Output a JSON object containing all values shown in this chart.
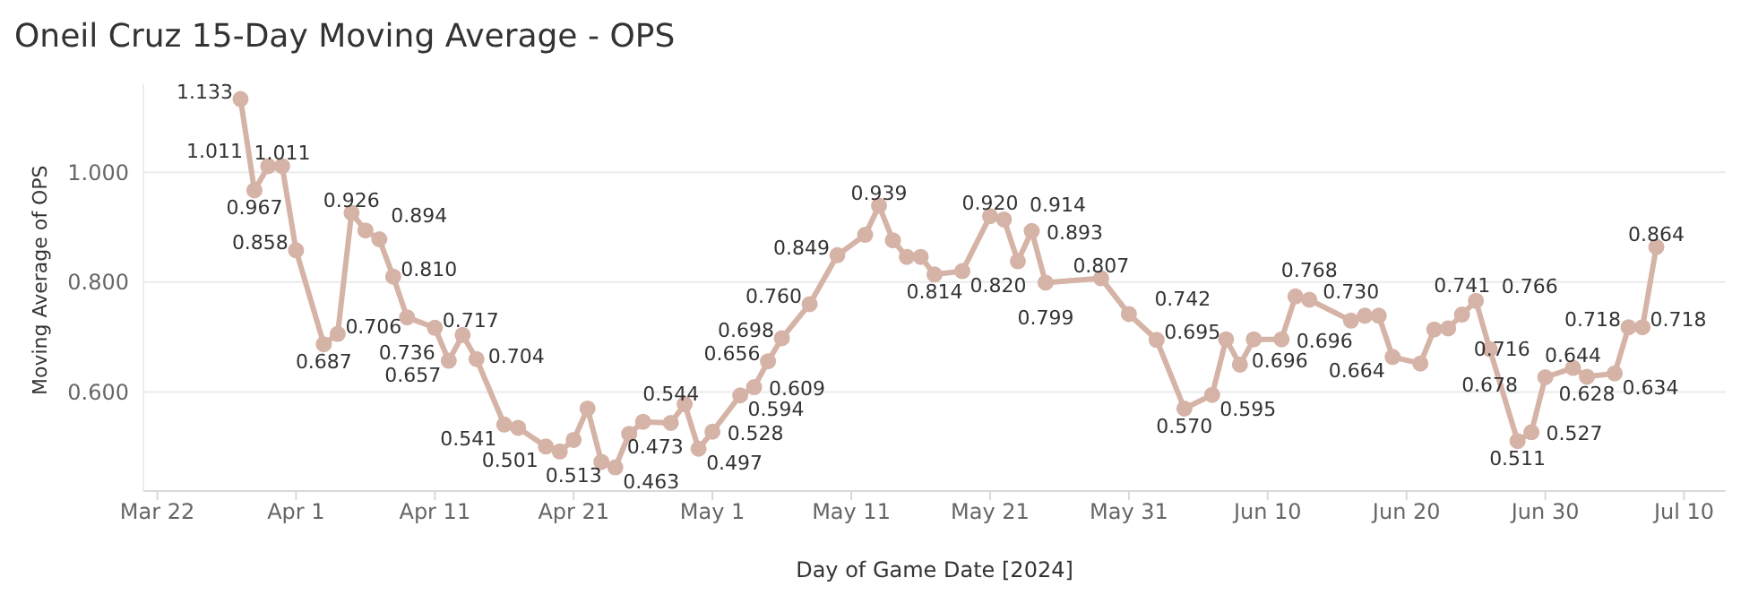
{
  "chart_data": {
    "type": "line",
    "title": "Oneil Cruz 15-Day Moving Average - OPS",
    "xlabel": "Day of Game Date [2024]",
    "ylabel": "Moving Average of OPS",
    "x": [
      "2024-03-28",
      "2024-03-29",
      "2024-03-30",
      "2024-03-31",
      "2024-04-01",
      "2024-04-03",
      "2024-04-04",
      "2024-04-05",
      "2024-04-06",
      "2024-04-07",
      "2024-04-08",
      "2024-04-09",
      "2024-04-11",
      "2024-04-12",
      "2024-04-13",
      "2024-04-14",
      "2024-04-16",
      "2024-04-17",
      "2024-04-19",
      "2024-04-20",
      "2024-04-21",
      "2024-04-22",
      "2024-04-23",
      "2024-04-24",
      "2024-04-25",
      "2024-04-26",
      "2024-04-28",
      "2024-04-29",
      "2024-04-30",
      "2024-05-01",
      "2024-05-03",
      "2024-05-04",
      "2024-05-05",
      "2024-05-06",
      "2024-05-08",
      "2024-05-10",
      "2024-05-12",
      "2024-05-13",
      "2024-05-14",
      "2024-05-15",
      "2024-05-16",
      "2024-05-17",
      "2024-05-19",
      "2024-05-21",
      "2024-05-22",
      "2024-05-23",
      "2024-05-24",
      "2024-05-25",
      "2024-05-29",
      "2024-05-31",
      "2024-06-02",
      "2024-06-04",
      "2024-06-06",
      "2024-06-07",
      "2024-06-08",
      "2024-06-09",
      "2024-06-11",
      "2024-06-12",
      "2024-06-13",
      "2024-06-16",
      "2024-06-17",
      "2024-06-18",
      "2024-06-19",
      "2024-06-21",
      "2024-06-22",
      "2024-06-23",
      "2024-06-24",
      "2024-06-25",
      "2024-06-26",
      "2024-06-28",
      "2024-06-29",
      "2024-06-30",
      "2024-07-02",
      "2024-07-03",
      "2024-07-05",
      "2024-07-06",
      "2024-07-07",
      "2024-07-08"
    ],
    "series": [
      {
        "color": "#d5b3a6",
        "values": [
          1.133,
          0.967,
          1.011,
          1.011,
          0.858,
          0.687,
          0.706,
          0.926,
          0.894,
          0.878,
          0.81,
          0.736,
          0.717,
          0.657,
          0.704,
          0.66,
          0.541,
          0.535,
          0.501,
          0.492,
          0.513,
          0.57,
          0.473,
          0.463,
          0.524,
          0.546,
          0.544,
          0.578,
          0.497,
          0.528,
          0.594,
          0.609,
          0.656,
          0.698,
          0.76,
          0.849,
          0.886,
          0.939,
          0.876,
          0.846,
          0.846,
          0.814,
          0.82,
          0.92,
          0.914,
          0.838,
          0.893,
          0.799,
          0.807,
          0.742,
          0.695,
          0.57,
          0.595,
          0.696,
          0.65,
          0.696,
          0.696,
          0.774,
          0.768,
          0.73,
          0.739,
          0.739,
          0.664,
          0.652,
          0.714,
          0.716,
          0.741,
          0.766,
          0.678,
          0.511,
          0.527,
          0.627,
          0.644,
          0.628,
          0.634,
          0.718,
          0.718,
          0.864
        ],
        "value_labels": [
          "1.133",
          "0.967",
          "1.011",
          "1.011",
          "0.858",
          "0.687",
          "0.706",
          "0.926",
          "0.894",
          null,
          "0.810",
          "0.736",
          "0.717",
          "0.657",
          "0.704",
          null,
          "0.541",
          null,
          "0.501",
          null,
          "0.513",
          null,
          "0.473",
          "0.463",
          null,
          null,
          "0.544",
          null,
          "0.497",
          "0.528",
          "0.594",
          "0.609",
          "0.656",
          "0.698",
          "0.760",
          "0.849",
          null,
          "0.939",
          null,
          null,
          null,
          "0.814",
          "0.820",
          "0.920",
          "0.914",
          null,
          "0.893",
          "0.799",
          "0.807",
          "0.742",
          "0.695",
          "0.570",
          "0.595",
          "0.696",
          null,
          null,
          "0.696",
          null,
          "0.768",
          "0.730",
          null,
          null,
          "0.664",
          null,
          null,
          "0.716",
          "0.741",
          "0.766",
          "0.678",
          "0.511",
          "0.527",
          null,
          "0.644",
          "0.628",
          "0.634",
          "0.718",
          "0.718",
          "0.864"
        ]
      }
    ],
    "xlim": [
      "2024-03-21",
      "2024-07-13"
    ],
    "xticks": [
      {
        "value": "2024-03-22",
        "label": "Mar 22"
      },
      {
        "value": "2024-04-01",
        "label": "Apr 1"
      },
      {
        "value": "2024-04-11",
        "label": "Apr 11"
      },
      {
        "value": "2024-04-21",
        "label": "Apr 21"
      },
      {
        "value": "2024-05-01",
        "label": "May 1"
      },
      {
        "value": "2024-05-11",
        "label": "May 11"
      },
      {
        "value": "2024-05-21",
        "label": "May 21"
      },
      {
        "value": "2024-05-31",
        "label": "May 31"
      },
      {
        "value": "2024-06-10",
        "label": "Jun 10"
      },
      {
        "value": "2024-06-20",
        "label": "Jun 20"
      },
      {
        "value": "2024-06-30",
        "label": "Jun 30"
      },
      {
        "value": "2024-07-10",
        "label": "Jul 10"
      }
    ],
    "ylim": [
      0.42,
      1.16
    ],
    "yticks": [
      {
        "value": 0.6,
        "label": "0.600"
      },
      {
        "value": 0.8,
        "label": "0.800"
      },
      {
        "value": 1.0,
        "label": "1.000"
      }
    ],
    "grid": "y",
    "marker": "circle",
    "line_style": "solid"
  }
}
